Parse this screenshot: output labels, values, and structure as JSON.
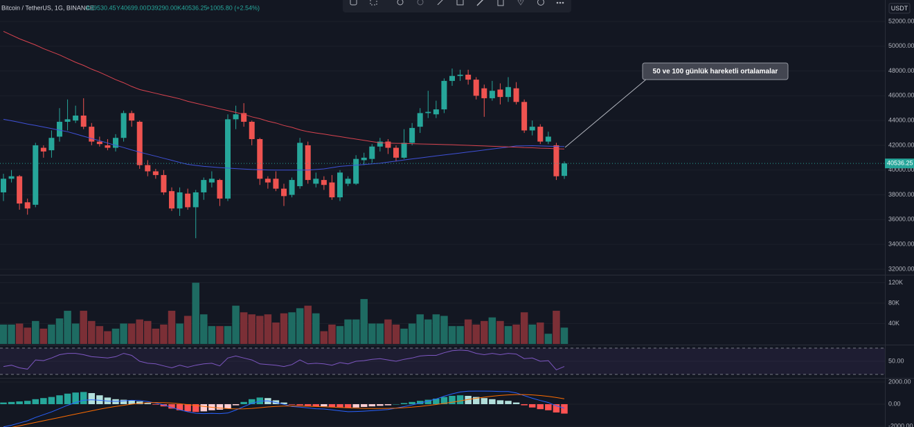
{
  "header": {
    "symbol": "Bitcoin / TetherUS, 1G, BINANCE",
    "open": "A39530.45",
    "high": "Y40699.00",
    "low": "D39290.00",
    "close": "K40536.25",
    "change": "+1005.80 (+2.54%)"
  },
  "currency": "USDT",
  "annotation": "50 ve 100 günlük hareketli ortalamalar",
  "chart_data": [
    {
      "type": "candlestick",
      "up_color": "#26a69a",
      "down_color": "#ef5350",
      "open": [
        38200,
        39300,
        39500,
        37400,
        37200,
        41800,
        41600,
        42700,
        43900,
        44000,
        44400,
        43500,
        42300,
        42000,
        41800,
        42600,
        44600,
        43900,
        40400,
        39900,
        39600,
        38300,
        36900,
        38100,
        37000,
        38200,
        39000,
        39200,
        37700,
        44100,
        44600,
        43900,
        42500,
        39300,
        39300,
        38500,
        38000,
        38700,
        42000,
        38900,
        39200,
        39000,
        37800,
        38900,
        38900,
        40800,
        40900,
        41900,
        42300,
        41800,
        41000,
        42200,
        43500,
        44600,
        44500,
        44900,
        47200,
        47600,
        47700,
        47300,
        46600,
        45800,
        46500,
        45900,
        46600,
        45500,
        43200,
        43500,
        42300,
        42000,
        39530.45
      ],
      "high": [
        39700,
        40000,
        39600,
        37700,
        42200,
        42000,
        43200,
        45000,
        45700,
        45200,
        45800,
        43800,
        42700,
        42500,
        42900,
        44800,
        44800,
        44000,
        40800,
        40100,
        40000,
        38600,
        38600,
        38500,
        38400,
        39400,
        39900,
        39300,
        44500,
        45200,
        45400,
        44000,
        42600,
        39500,
        39900,
        38900,
        39400,
        42600,
        42300,
        39800,
        39500,
        39600,
        40000,
        39500,
        41200,
        41400,
        42100,
        42600,
        42500,
        42000,
        43300,
        43800,
        45000,
        46400,
        45600,
        47400,
        48200,
        48100,
        48100,
        47500,
        46900,
        47200,
        47000,
        47500,
        47100,
        45700,
        44000,
        43700,
        43100,
        42200,
        40699
      ],
      "low": [
        37500,
        39000,
        36800,
        36400,
        37000,
        41000,
        41000,
        42300,
        43200,
        43800,
        43300,
        42000,
        41900,
        41600,
        41500,
        42300,
        43500,
        40100,
        39500,
        39300,
        38000,
        36700,
        36300,
        36800,
        34500,
        37600,
        38600,
        37100,
        37500,
        43300,
        43500,
        42000,
        38800,
        38500,
        38300,
        37100,
        37800,
        38500,
        38900,
        38600,
        38400,
        37600,
        37500,
        38700,
        38800,
        40400,
        40600,
        41500,
        41300,
        40700,
        40900,
        42000,
        43000,
        44200,
        44200,
        44600,
        46800,
        47200,
        46900,
        45700,
        44300,
        45600,
        45300,
        45500,
        45300,
        43000,
        42800,
        42100,
        42100,
        39200,
        39290
      ],
      "close": [
        39300,
        39500,
        37300,
        36900,
        42000,
        41500,
        42600,
        43900,
        44100,
        44400,
        43500,
        42300,
        42100,
        41800,
        42600,
        44600,
        44000,
        40400,
        39900,
        39600,
        38200,
        36900,
        38200,
        37000,
        38200,
        39200,
        39300,
        37700,
        44100,
        44500,
        43900,
        42500,
        39300,
        39000,
        38500,
        37900,
        39200,
        42200,
        39200,
        39300,
        38800,
        37800,
        39800,
        39300,
        40900,
        41000,
        41900,
        42300,
        41800,
        41000,
        42200,
        43400,
        44600,
        44700,
        44900,
        47200,
        47600,
        47700,
        47300,
        46000,
        45800,
        46400,
        45900,
        46700,
        45500,
        43200,
        43500,
        42300,
        42700,
        39500,
        40536.25
      ],
      "lines": [
        {
          "color": "#3f51d8",
          "values": [
            44100,
            43980,
            43850,
            43720,
            43600,
            43480,
            43350,
            43220,
            43100,
            42920,
            42730,
            42550,
            42370,
            42180,
            42000,
            41820,
            41630,
            41450,
            41280,
            41120,
            40950,
            40790,
            40620,
            40460,
            40380,
            40300,
            40250,
            40200,
            40160,
            40120,
            40080,
            40050,
            40030,
            40010,
            40000,
            40000,
            40000,
            40000,
            40000,
            40050,
            40100,
            40200,
            40300,
            40350,
            40400,
            40450,
            40500,
            40550,
            40640,
            40730,
            40820,
            40900,
            40980,
            41060,
            41140,
            41220,
            41300,
            41380,
            41460,
            41540,
            41620,
            41700,
            41780,
            41860,
            41950,
            41960,
            41970,
            41950,
            41930,
            41910,
            41900
          ]
        },
        {
          "color": "#d9434f",
          "values": [
            51200,
            50900,
            50600,
            50350,
            50100,
            49800,
            49550,
            49300,
            49000,
            48700,
            48450,
            48150,
            47900,
            47600,
            47300,
            47050,
            46750,
            46500,
            46350,
            46200,
            46050,
            45900,
            45750,
            45550,
            45400,
            45250,
            45100,
            44950,
            44800,
            44650,
            44500,
            44300,
            44150,
            43950,
            43800,
            43600,
            43450,
            43250,
            43100,
            43000,
            42900,
            42800,
            42700,
            42600,
            42500,
            42400,
            42300,
            42200,
            42180,
            42160,
            42150,
            42130,
            42110,
            42100,
            42080,
            42060,
            42050,
            42020,
            42000,
            41970,
            41950,
            41920,
            41900,
            41870,
            41850,
            41820,
            41800,
            41770,
            41750,
            41720,
            41700
          ]
        }
      ],
      "ylim": [
        31550,
        53730
      ],
      "yticks": [
        {
          "value": 52000,
          "label": "52000.00"
        },
        {
          "value": 50000,
          "label": "50000.00"
        },
        {
          "value": 48000,
          "label": "48000.00"
        },
        {
          "value": 46000,
          "label": "46000.00"
        },
        {
          "value": 44000,
          "label": "44000.00"
        },
        {
          "value": 42000,
          "label": "42000.00"
        },
        {
          "value": 40000,
          "label": "40000.00"
        },
        {
          "value": 38000,
          "label": "38000.00"
        },
        {
          "value": 36000,
          "label": "36000.00"
        },
        {
          "value": 34000,
          "label": "34000.00"
        },
        {
          "value": 32000,
          "label": "32000.00"
        }
      ]
    },
    {
      "type": "bar",
      "color_by": "candle",
      "up_color": "#1e6b62",
      "down_color": "#7b2f36",
      "values": [
        38000,
        38000,
        40000,
        32000,
        45000,
        30000,
        38000,
        50000,
        65000,
        40000,
        65000,
        45000,
        35000,
        25000,
        30000,
        40000,
        40000,
        48000,
        45000,
        30000,
        38000,
        65000,
        40000,
        55000,
        120000,
        58000,
        35000,
        35000,
        35000,
        75000,
        62000,
        58000,
        55000,
        58000,
        42000,
        60000,
        62000,
        70000,
        75000,
        60000,
        25000,
        38000,
        35000,
        48000,
        48000,
        88000,
        40000,
        40000,
        48000,
        38000,
        30000,
        40000,
        58000,
        48000,
        58000,
        55000,
        35000,
        35000,
        48000,
        38000,
        45000,
        52000,
        45000,
        35000,
        38000,
        62000,
        38000,
        42000,
        20000,
        65000,
        32000
      ],
      "ylim": [
        0,
        131500
      ],
      "yticks": [
        {
          "value": 120000,
          "label": "120K"
        },
        {
          "value": 80000,
          "label": "80K"
        },
        {
          "value": 40000,
          "label": "40K"
        }
      ]
    },
    {
      "type": "line",
      "color": "#7e57c2",
      "bands": [
        70,
        30
      ],
      "band_color": "#7e57c2",
      "values": [
        42,
        44,
        40,
        38,
        52,
        51,
        55,
        60,
        62,
        62,
        60,
        57,
        56,
        55,
        57,
        62,
        59,
        50,
        47,
        46,
        43,
        40,
        44,
        41,
        44,
        46,
        47,
        43,
        55,
        58,
        55,
        52,
        46,
        45,
        44,
        42,
        45,
        52,
        46,
        47,
        46,
        44,
        48,
        46,
        50,
        51,
        53,
        54,
        52,
        50,
        53,
        55,
        58,
        59,
        59,
        63,
        66,
        67,
        66,
        62,
        60,
        62,
        60,
        62,
        61,
        54,
        55,
        50,
        51,
        37,
        42
      ],
      "ylim": [
        25.8,
        73.2
      ],
      "yticks": [
        {
          "value": 50,
          "label": "50.00"
        }
      ]
    },
    {
      "type": "bar",
      "color_by": "momentum",
      "colors": [
        "#26a69a",
        "#b2dfdb",
        "#ffcdd2",
        "#ff5252"
      ],
      "values": [
        150,
        200,
        250,
        300,
        450,
        550,
        650,
        800,
        950,
        1050,
        1100,
        1000,
        800,
        600,
        450,
        400,
        350,
        250,
        100,
        -50,
        -200,
        -400,
        -550,
        -650,
        -700,
        -650,
        -550,
        -500,
        -400,
        -100,
        200,
        450,
        600,
        550,
        350,
        150,
        -50,
        -100,
        -150,
        -200,
        -200,
        -250,
        -300,
        -350,
        -300,
        -250,
        -200,
        -150,
        -100,
        0,
        100,
        200,
        300,
        400,
        500,
        650,
        750,
        800,
        750,
        650,
        550,
        450,
        350,
        300,
        150,
        -100,
        -300,
        -450,
        -550,
        -750,
        -850
      ],
      "lines": [
        {
          "color": "#2962ff",
          "values": [
            -2050,
            -1900,
            -1700,
            -1500,
            -1200,
            -950,
            -700,
            -400,
            -100,
            150,
            350,
            400,
            350,
            280,
            250,
            300,
            350,
            330,
            230,
            100,
            -60,
            -300,
            -510,
            -690,
            -820,
            -850,
            -830,
            -850,
            -800,
            -530,
            -220,
            70,
            280,
            300,
            150,
            -20,
            -210,
            -270,
            -340,
            -410,
            -440,
            -520,
            -600,
            -680,
            -660,
            -630,
            -590,
            -540,
            -480,
            -360,
            -220,
            -70,
            100,
            280,
            470,
            720,
            930,
            1100,
            1170,
            1180,
            1180,
            1170,
            1140,
            1140,
            1020,
            770,
            540,
            330,
            150,
            -150,
            -370
          ]
        },
        {
          "color": "#ff6d00",
          "values": [
            -2200,
            -2100,
            -1950,
            -1800,
            -1650,
            -1500,
            -1350,
            -1200,
            -1050,
            -900,
            -750,
            -600,
            -450,
            -320,
            -200,
            -100,
            0,
            80,
            130,
            150,
            140,
            100,
            40,
            -40,
            -120,
            -200,
            -280,
            -350,
            -400,
            -430,
            -420,
            -380,
            -320,
            -250,
            -200,
            -170,
            -160,
            -170,
            -190,
            -210,
            -240,
            -270,
            -300,
            -330,
            -360,
            -380,
            -390,
            -390,
            -380,
            -360,
            -320,
            -270,
            -200,
            -120,
            -30,
            70,
            180,
            300,
            420,
            530,
            630,
            720,
            790,
            840,
            870,
            870,
            840,
            780,
            700,
            600,
            480
          ]
        }
      ],
      "ylim": [
        -2062,
        2250
      ],
      "yticks": [
        {
          "value": 2000,
          "label": "2000.00"
        },
        {
          "value": 0,
          "label": "0.00"
        },
        {
          "value": -2000,
          "label": "-2000.00"
        }
      ]
    }
  ]
}
